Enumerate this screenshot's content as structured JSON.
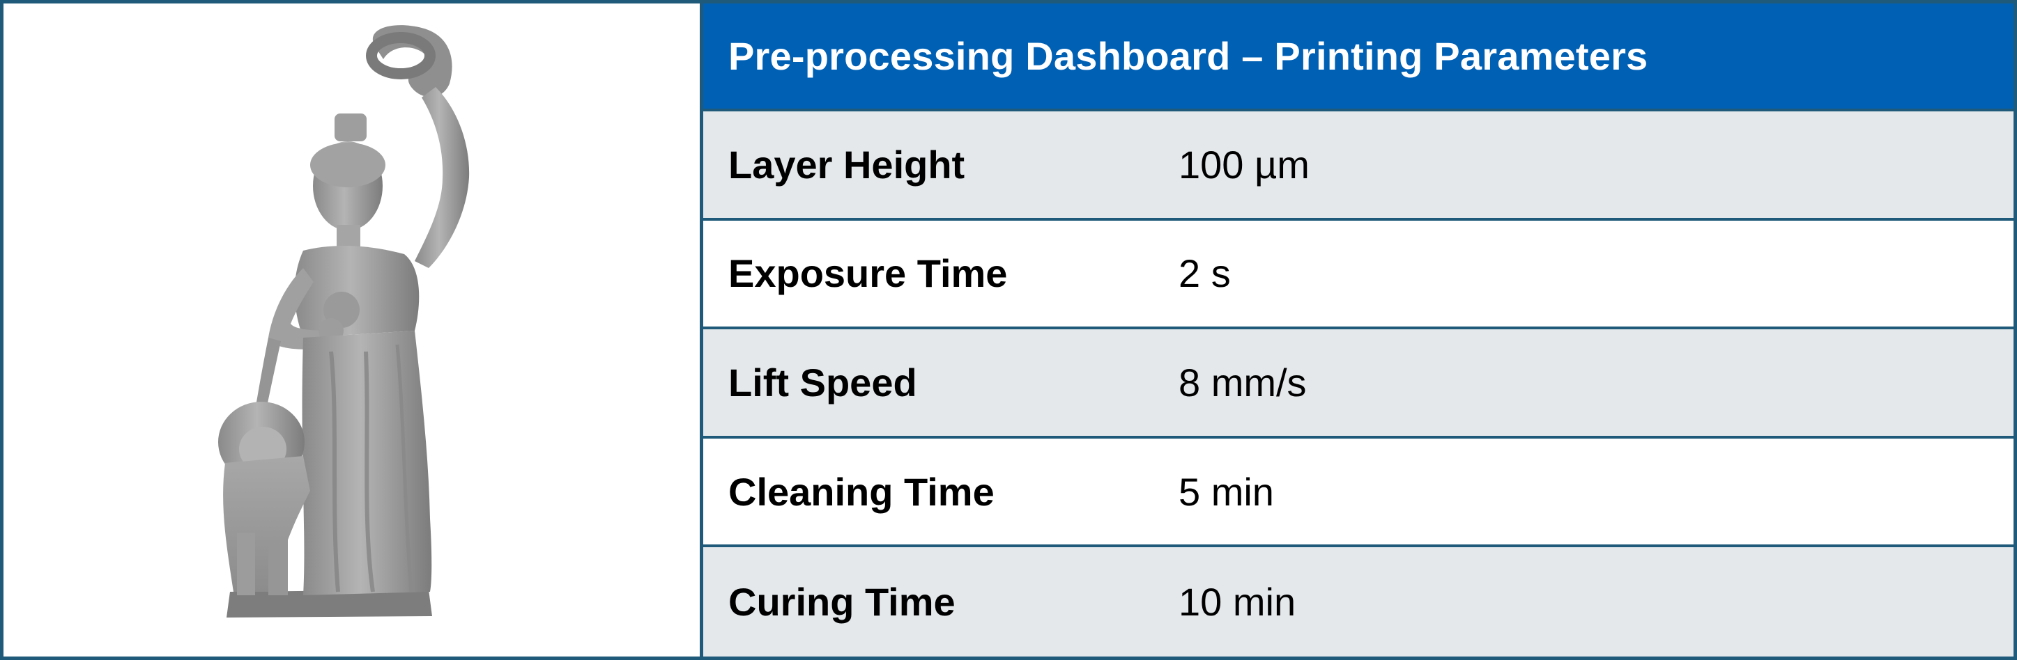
{
  "preview": {
    "model_icon": "statue-with-lion-model-icon"
  },
  "dashboard": {
    "title": "Pre-processing Dashboard – Printing Parameters",
    "header_color": "#0060b4",
    "border_color": "#1f5a7a",
    "row_shade_color": "#e4e8eb",
    "parameters": [
      {
        "label": "Layer Height",
        "value": "100 µm"
      },
      {
        "label": "Exposure Time",
        "value": "2 s"
      },
      {
        "label": "Lift Speed",
        "value": "8 mm/s"
      },
      {
        "label": "Cleaning Time",
        "value": "5 min"
      },
      {
        "label": "Curing Time",
        "value": "10 min"
      }
    ]
  }
}
